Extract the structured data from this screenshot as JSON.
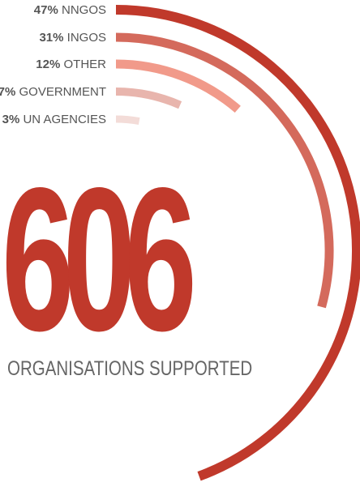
{
  "chart_data": {
    "type": "radial-bar",
    "categories": [
      "NNGOS",
      "INGOS",
      "OTHER",
      "GOVERNMENT",
      "UN AGENCIES"
    ],
    "values": [
      47,
      31,
      12,
      7,
      3
    ],
    "value_labels": [
      "47%",
      "31%",
      "12%",
      "7%",
      "3%"
    ],
    "colors": [
      "#c0392b",
      "#d46a5c",
      "#f19a8a",
      "#e8b5ad",
      "#f3dcd8"
    ],
    "headline": {
      "number": "606",
      "caption": "ORGANISATIONS SUPPORTED"
    }
  }
}
